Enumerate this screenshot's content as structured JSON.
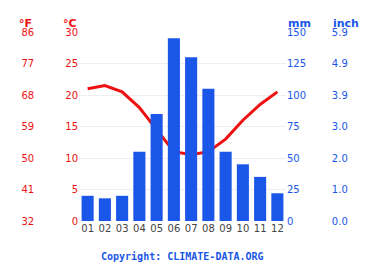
{
  "chart_data": {
    "type": "bar",
    "categories": [
      "01",
      "02",
      "03",
      "04",
      "05",
      "06",
      "07",
      "08",
      "09",
      "10",
      "11",
      "12"
    ],
    "series": [
      {
        "type": "bar",
        "color": "#1a56e8",
        "axis": "y2",
        "values": [
          20,
          18,
          20,
          55,
          85,
          145,
          130,
          105,
          55,
          45,
          35,
          22
        ]
      },
      {
        "type": "line",
        "color": "#ee1111",
        "values": [
          21,
          21.5,
          20.5,
          18,
          14.5,
          11,
          10.5,
          11,
          13,
          16,
          18.5,
          20.5
        ]
      }
    ],
    "ylabel": "°C",
    "ylim": [
      0,
      30
    ],
    "yticks": [
      0,
      5,
      10,
      15,
      20,
      25,
      30
    ],
    "y2label": "mm",
    "y2lim": [
      0,
      150
    ],
    "y2ticks": [
      0,
      25,
      50,
      75,
      100,
      125,
      150
    ],
    "y3label": "°F",
    "y3lim": [
      0,
      30
    ],
    "y3ticks": [
      {
        "value": 0,
        "label": "32"
      },
      {
        "value": 5,
        "label": "41"
      },
      {
        "value": 10,
        "label": "50"
      },
      {
        "value": 15,
        "label": "59"
      },
      {
        "value": 20,
        "label": "68"
      },
      {
        "value": 25,
        "label": "77"
      },
      {
        "value": 30,
        "label": "86"
      }
    ],
    "y4label": "inch",
    "y4lim": [
      0,
      150
    ],
    "y4ticks": [
      {
        "value": 0,
        "label": "0.0"
      },
      {
        "value": 25,
        "label": "1.0"
      },
      {
        "value": 50,
        "label": "2.0"
      },
      {
        "value": 75,
        "label": "3.0"
      },
      {
        "value": 100,
        "label": "3.9"
      },
      {
        "value": 125,
        "label": "4.9"
      },
      {
        "value": 150,
        "label": "5.9"
      }
    ],
    "grid": true,
    "annotations": [
      "Copyright: CLIMATE-DATA.ORG"
    ]
  }
}
